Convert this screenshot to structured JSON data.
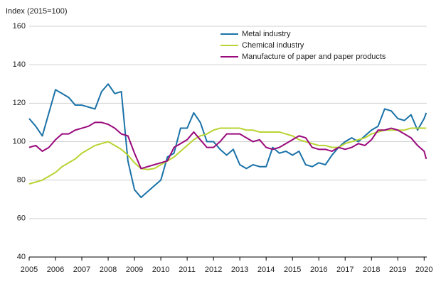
{
  "chart_data": {
    "type": "line",
    "ylabel": "Index (2015=100)",
    "x": [
      2005,
      2005.25,
      2005.5,
      2005.75,
      2006,
      2006.25,
      2006.5,
      2006.75,
      2007,
      2007.25,
      2007.5,
      2007.75,
      2008,
      2008.25,
      2008.5,
      2008.75,
      2009,
      2009.25,
      2009.5,
      2009.75,
      2010,
      2010.25,
      2010.5,
      2010.75,
      2011,
      2011.25,
      2011.5,
      2011.75,
      2012,
      2012.25,
      2012.5,
      2012.75,
      2013,
      2013.25,
      2013.5,
      2013.75,
      2014,
      2014.25,
      2014.5,
      2014.75,
      2015,
      2015.25,
      2015.5,
      2015.75,
      2016,
      2016.25,
      2016.5,
      2016.75,
      2017,
      2017.25,
      2017.5,
      2017.75,
      2018,
      2018.25,
      2018.5,
      2018.75,
      2019,
      2019.25,
      2019.5,
      2019.75,
      2020,
      2020.08
    ],
    "series": [
      {
        "name": "Metal industry",
        "color": "#1a72a8",
        "values": [
          112,
          108,
          103,
          115,
          127,
          125,
          123,
          119,
          119,
          118,
          117,
          126,
          130,
          125,
          126,
          90,
          75,
          71,
          74,
          77,
          80,
          92,
          94,
          107,
          107,
          115,
          110,
          100,
          100,
          96,
          93,
          96,
          88,
          86,
          88,
          87,
          87,
          97,
          94,
          95,
          93,
          95,
          88,
          87,
          89,
          88,
          93,
          97,
          100,
          102,
          100,
          103,
          106,
          108,
          117,
          116,
          112,
          111,
          114,
          106,
          112,
          115
        ]
      },
      {
        "name": "Chemical industry",
        "color": "#b8d432",
        "values": [
          78,
          79,
          80,
          82,
          84,
          87,
          89,
          91,
          94,
          96,
          98,
          99,
          100,
          98,
          96,
          93,
          89,
          86,
          85.5,
          86,
          88,
          90,
          92,
          95,
          98,
          101,
          103,
          104,
          106,
          107,
          107,
          107,
          107,
          106,
          106,
          105,
          105,
          105,
          105,
          104,
          103,
          101,
          100,
          99,
          98,
          98,
          97,
          97,
          99,
          100,
          101,
          102,
          104,
          105,
          106,
          106,
          106,
          106,
          107,
          107,
          107,
          107
        ]
      },
      {
        "name": "Manufacture of paper and paper products",
        "color": "#9a0a7c",
        "values": [
          97,
          98,
          95,
          97,
          101,
          104,
          104,
          106,
          107,
          108,
          110,
          110,
          109,
          107,
          104,
          103,
          94,
          86,
          87,
          88,
          89,
          90,
          97,
          99,
          101,
          105,
          101,
          97,
          97,
          100,
          104,
          104,
          104,
          102,
          100,
          101,
          97,
          96,
          97,
          99,
          101,
          103,
          102,
          97,
          96,
          96,
          95,
          97,
          96,
          97,
          99,
          98,
          101,
          106,
          106,
          107,
          106,
          104,
          102,
          98,
          95,
          91
        ]
      }
    ],
    "xlim": [
      2005,
      2020.1
    ],
    "xticks": [
      2005,
      2006,
      2007,
      2008,
      2009,
      2010,
      2011,
      2012,
      2013,
      2014,
      2015,
      2016,
      2017,
      2018,
      2019,
      2020
    ],
    "ylim": [
      40,
      160
    ],
    "yticks": [
      40,
      60,
      80,
      100,
      120,
      140,
      160
    ],
    "grid": true
  }
}
